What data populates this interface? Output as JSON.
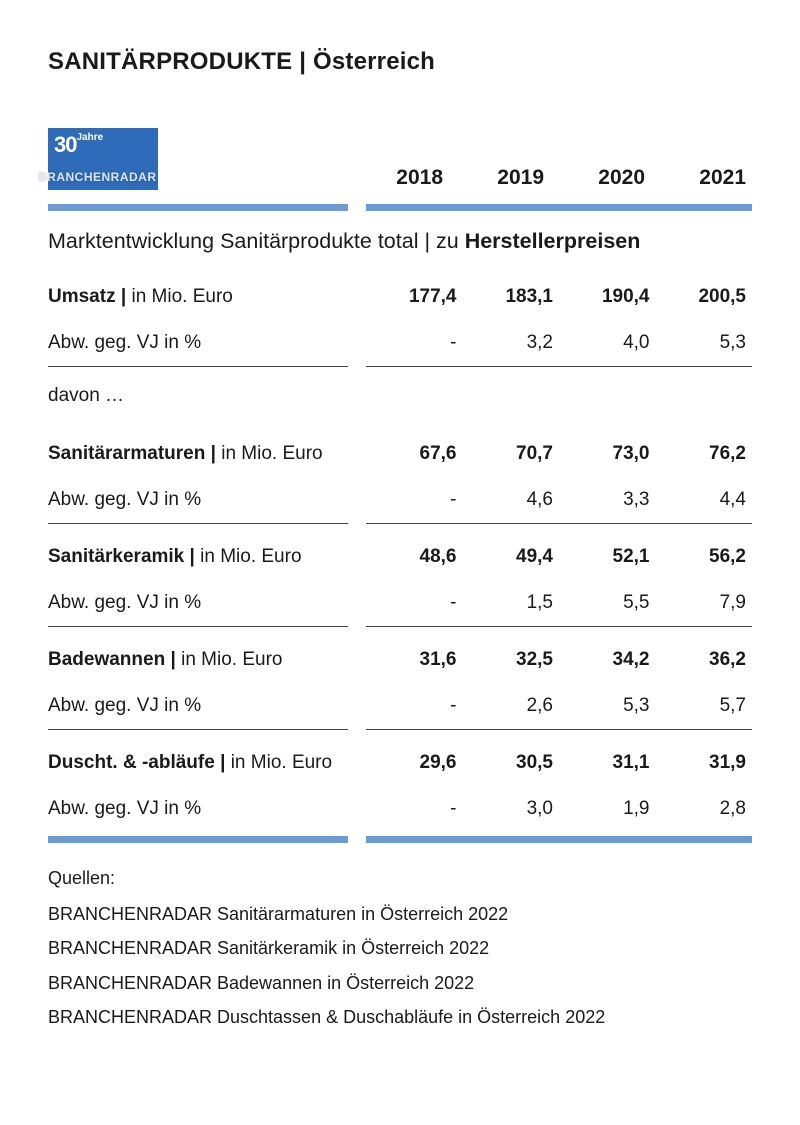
{
  "title": "SANITÄRPRODUKTE | Österreich",
  "logo": {
    "jahre_num": "30",
    "jahre_text": "Jahre",
    "brand": "BRANCHENRADAR"
  },
  "years": [
    "2018",
    "2019",
    "2020",
    "2021"
  ],
  "accent_color": "#6a9bd4",
  "section_title_pre": "Marktentwicklung Sanitärprodukte total | zu ",
  "section_title_bold": "Herstellerpreisen",
  "umsatz": {
    "label_bold": "Umsatz",
    "label_rest": "in Mio. Euro",
    "values": [
      "177,4",
      "183,1",
      "190,4",
      "200,5"
    ],
    "pct_label": "Abw. geg. VJ in %",
    "pct": [
      "-",
      "3,2",
      "4,0",
      "5,3"
    ]
  },
  "davon_label": "davon …",
  "groups": [
    {
      "label_bold": "Sanitärarmaturen",
      "label_rest": "in Mio. Euro",
      "values": [
        "67,6",
        "70,7",
        "73,0",
        "76,2"
      ],
      "pct_label": "Abw. geg. VJ in %",
      "pct": [
        "-",
        "4,6",
        "3,3",
        "4,4"
      ]
    },
    {
      "label_bold": "Sanitärkeramik",
      "label_rest": "in Mio. Euro",
      "values": [
        "48,6",
        "49,4",
        "52,1",
        "56,2"
      ],
      "pct_label": "Abw. geg. VJ in %",
      "pct": [
        "-",
        "1,5",
        "5,5",
        "7,9"
      ]
    },
    {
      "label_bold": "Badewannen",
      "label_rest": "in Mio. Euro",
      "values": [
        "31,6",
        "32,5",
        "34,2",
        "36,2"
      ],
      "pct_label": "Abw. geg. VJ in %",
      "pct": [
        "-",
        "2,6",
        "5,3",
        "5,7"
      ]
    },
    {
      "label_bold": "Duscht. & -abläufe",
      "label_rest": "in Mio. Euro",
      "values": [
        "29,6",
        "30,5",
        "31,1",
        "31,9"
      ],
      "pct_label": "Abw. geg. VJ in %",
      "pct": [
        "-",
        "3,0",
        "1,9",
        "2,8"
      ]
    }
  ],
  "sources_label": "Quellen:",
  "sources": [
    "BRANCHENRADAR Sanitärarmaturen in Österreich 2022",
    "BRANCHENRADAR Sanitärkeramik in Österreich 2022",
    "BRANCHENRADAR Badewannen in Österreich 2022",
    "BRANCHENRADAR Duschtassen & Duschabläufe in Österreich 2022"
  ]
}
